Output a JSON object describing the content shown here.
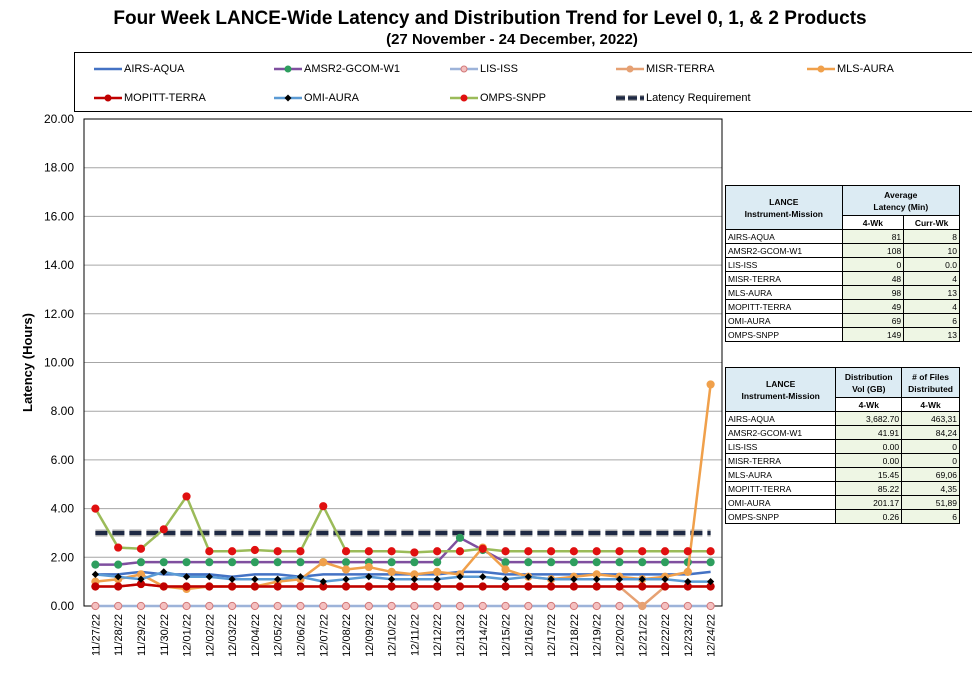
{
  "chart_data": {
    "type": "line",
    "title": "Four Week LANCE-Wide Latency and Distribution Trend for Level 0, 1, & 2 Products",
    "subtitle": "(27  November    -  24  December,  2022)",
    "xlabel": "",
    "ylabel": "Latency (Hours)",
    "ylim": [
      0,
      20
    ],
    "yticks": [
      "0.00",
      "2.00",
      "4.00",
      "6.00",
      "8.00",
      "10.00",
      "12.00",
      "14.00",
      "16.00",
      "18.00",
      "20.00"
    ],
    "grid": "horizontal",
    "legend_position": "top",
    "categories": [
      "11/27/22",
      "11/28/22",
      "11/29/22",
      "11/30/22",
      "12/01/22",
      "12/02/22",
      "12/03/22",
      "12/04/22",
      "12/05/22",
      "12/06/22",
      "12/07/22",
      "12/08/22",
      "12/09/22",
      "12/10/22",
      "12/11/22",
      "12/12/22",
      "12/13/22",
      "12/14/22",
      "12/15/22",
      "12/16/22",
      "12/17/22",
      "12/18/22",
      "12/19/22",
      "12/20/22",
      "12/21/22",
      "12/22/22",
      "12/23/22",
      "12/24/22"
    ],
    "series": [
      {
        "name": "AIRS-AQUA",
        "color": "#4472c4",
        "marker": "none",
        "dash": false,
        "values": [
          1.3,
          1.3,
          1.4,
          1.3,
          1.3,
          1.3,
          1.2,
          1.3,
          1.3,
          1.2,
          1.3,
          1.3,
          1.3,
          1.3,
          1.3,
          1.3,
          1.4,
          1.4,
          1.3,
          1.3,
          1.3,
          1.3,
          1.3,
          1.3,
          1.3,
          1.3,
          1.3,
          1.4
        ]
      },
      {
        "name": "AMSR2-GCOM-W1",
        "color": "#7f4f9f",
        "marker": "circle",
        "markerColor": "#2e9e5e",
        "dash": false,
        "values": [
          1.7,
          1.7,
          1.8,
          1.8,
          1.8,
          1.8,
          1.8,
          1.8,
          1.8,
          1.8,
          1.8,
          1.8,
          1.8,
          1.8,
          1.8,
          1.8,
          2.8,
          2.3,
          1.8,
          1.8,
          1.8,
          1.8,
          1.8,
          1.8,
          1.8,
          1.8,
          1.8,
          1.8
        ]
      },
      {
        "name": "LIS-ISS",
        "color": "#9db3d9",
        "marker": "circle",
        "markerColor": "#f4c0c0",
        "markerStroke": "#d27878",
        "dash": false,
        "values": [
          0.0,
          0.0,
          0.0,
          0.0,
          0.0,
          0.0,
          0.0,
          0.0,
          0.0,
          0.0,
          0.0,
          0.0,
          0.0,
          0.0,
          0.0,
          0.0,
          0.0,
          0.0,
          0.0,
          0.0,
          0.0,
          0.0,
          0.0,
          0.0,
          0.0,
          0.0,
          0.0,
          0.0
        ]
      },
      {
        "name": "MISR-TERRA",
        "color": "#e6a173",
        "marker": "circle",
        "markerColor": "#e6a173",
        "dash": false,
        "values": [
          0.8,
          0.8,
          0.9,
          0.8,
          0.8,
          0.8,
          0.8,
          0.8,
          0.8,
          0.8,
          0.8,
          0.8,
          0.8,
          0.8,
          0.8,
          0.8,
          0.8,
          0.8,
          0.8,
          0.8,
          0.8,
          0.8,
          0.8,
          0.8,
          0.0,
          0.8,
          0.8,
          0.8
        ]
      },
      {
        "name": "MLS-AURA",
        "color": "#f0a04b",
        "marker": "circle",
        "markerColor": "#f0a04b",
        "dash": false,
        "values": [
          1.0,
          1.1,
          1.3,
          0.8,
          0.7,
          0.8,
          0.8,
          0.8,
          1.0,
          1.1,
          1.8,
          1.5,
          1.6,
          1.4,
          1.3,
          1.4,
          1.3,
          2.4,
          1.5,
          1.2,
          1.1,
          1.2,
          1.3,
          1.2,
          1.1,
          1.2,
          1.4,
          9.1
        ]
      },
      {
        "name": "MOPITT-TERRA",
        "color": "#c00000",
        "marker": "circle",
        "markerColor": "#c00000",
        "dash": false,
        "values": [
          0.8,
          0.8,
          0.9,
          0.8,
          0.8,
          0.8,
          0.8,
          0.8,
          0.8,
          0.8,
          0.8,
          0.8,
          0.8,
          0.8,
          0.8,
          0.8,
          0.8,
          0.8,
          0.8,
          0.8,
          0.8,
          0.8,
          0.8,
          0.8,
          0.8,
          0.8,
          0.8,
          0.8
        ]
      },
      {
        "name": "OMI-AURA",
        "color": "#5b9bd5",
        "marker": "diamond",
        "markerColor": "#000000",
        "dash": false,
        "values": [
          1.3,
          1.2,
          1.1,
          1.4,
          1.2,
          1.2,
          1.1,
          1.1,
          1.1,
          1.2,
          1.0,
          1.1,
          1.2,
          1.1,
          1.1,
          1.1,
          1.2,
          1.2,
          1.1,
          1.2,
          1.1,
          1.1,
          1.1,
          1.1,
          1.1,
          1.1,
          1.0,
          1.0
        ]
      },
      {
        "name": "OMPS-SNPP",
        "color": "#9bbb59",
        "marker": "circle",
        "markerColor": "#e01010",
        "dash": false,
        "values": [
          4.0,
          2.4,
          2.35,
          3.15,
          4.5,
          2.25,
          2.25,
          2.3,
          2.25,
          2.25,
          4.1,
          2.25,
          2.25,
          2.25,
          2.2,
          2.25,
          2.25,
          2.35,
          2.25,
          2.25,
          2.25,
          2.25,
          2.25,
          2.25,
          2.25,
          2.25,
          2.25,
          2.25
        ]
      },
      {
        "name": "Latency Requirement",
        "color": "#1f2a44",
        "marker": "none",
        "dash": true,
        "values": [
          3,
          3,
          3,
          3,
          3,
          3,
          3,
          3,
          3,
          3,
          3,
          3,
          3,
          3,
          3,
          3,
          3,
          3,
          3,
          3,
          3,
          3,
          3,
          3,
          3,
          3,
          3,
          3
        ]
      }
    ]
  },
  "latency_table": {
    "header_col1": "LANCE\nInstrument-Mission",
    "header_group": "Average\nLatency (Min)",
    "sub1": "4-Wk",
    "sub2": "Curr-Wk",
    "rows": [
      {
        "name": "AIRS-AQUA",
        "v1": "81",
        "v2": "8"
      },
      {
        "name": "AMSR2-GCOM-W1",
        "v1": "108",
        "v2": "10"
      },
      {
        "name": "LIS-ISS",
        "v1": "0",
        "v2": "0.0"
      },
      {
        "name": "MISR-TERRA",
        "v1": "48",
        "v2": "4"
      },
      {
        "name": "MLS-AURA",
        "v1": "98",
        "v2": "13"
      },
      {
        "name": "MOPITT-TERRA",
        "v1": "49",
        "v2": "4"
      },
      {
        "name": "OMI-AURA",
        "v1": "69",
        "v2": "6"
      },
      {
        "name": "OMPS-SNPP",
        "v1": "149",
        "v2": "13"
      }
    ]
  },
  "distribution_table": {
    "header_col1": "LANCE\nInstrument-Mission",
    "header_c2": "Distribution\nVol (GB)",
    "header_c3": "# of Files\nDistributed",
    "sub1": "4-Wk",
    "sub2": "4-Wk",
    "rows": [
      {
        "name": "AIRS-AQUA",
        "v1": "3,682.70",
        "v2": "463,31"
      },
      {
        "name": "AMSR2-GCOM-W1",
        "v1": "41.91",
        "v2": "84,24"
      },
      {
        "name": "LIS-ISS",
        "v1": "0.00",
        "v2": "0"
      },
      {
        "name": "MISR-TERRA",
        "v1": "0.00",
        "v2": "0"
      },
      {
        "name": "MLS-AURA",
        "v1": "15.45",
        "v2": "69,06"
      },
      {
        "name": "MOPITT-TERRA",
        "v1": "85.22",
        "v2": "4,35"
      },
      {
        "name": "OMI-AURA",
        "v1": "201.17",
        "v2": "51,89"
      },
      {
        "name": "OMPS-SNPP",
        "v1": "0.26",
        "v2": "6"
      }
    ]
  }
}
